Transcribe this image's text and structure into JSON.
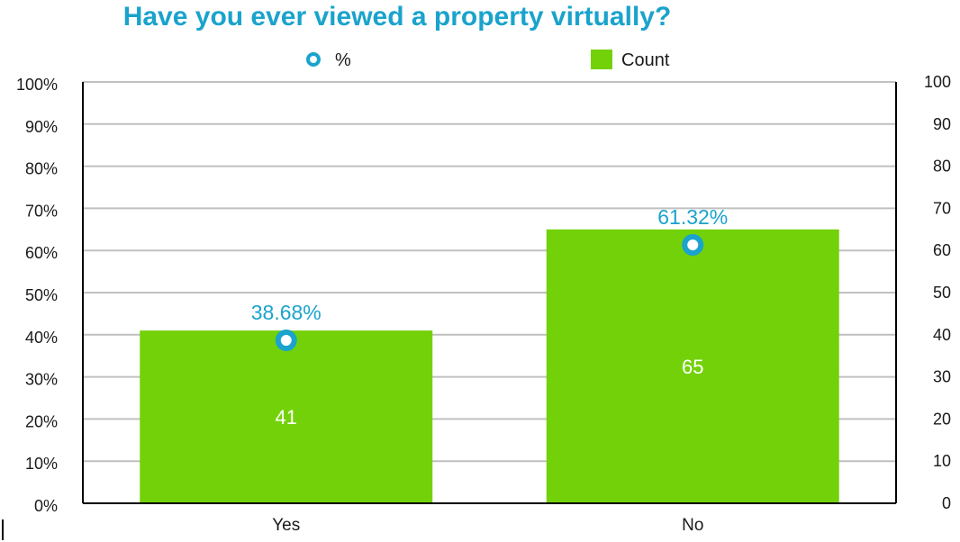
{
  "chart_data": {
    "type": "bar",
    "title": "Have you ever viewed a property virtually?",
    "categories": [
      "Yes",
      "No"
    ],
    "series": [
      {
        "name": "Count",
        "type": "bar",
        "axis": "right",
        "values": [
          41,
          65
        ],
        "labels": [
          "41",
          "65"
        ]
      },
      {
        "name": "%",
        "type": "scatter",
        "axis": "left",
        "values": [
          38.68,
          61.32
        ],
        "labels": [
          "38.68%",
          "61.32%"
        ]
      }
    ],
    "left_axis": {
      "ylim": [
        0,
        100
      ],
      "ticks": [
        "0%",
        "10%",
        "20%",
        "30%",
        "40%",
        "50%",
        "60%",
        "70%",
        "80%",
        "90%",
        "100%"
      ]
    },
    "right_axis": {
      "ylim": [
        0,
        100
      ],
      "ticks": [
        "0",
        "10",
        "20",
        "30",
        "40",
        "50",
        "60",
        "70",
        "80",
        "90",
        "100"
      ]
    },
    "grid": true,
    "legend": {
      "placement": "top-center",
      "entries": [
        "%",
        "Count"
      ]
    }
  },
  "colors": {
    "title": "#1aa3cc",
    "bar": "#73d10a",
    "marker": "#1aa3cc",
    "pct_label": "#1aa3cc",
    "count_label": "#ffffff",
    "grid": "#c0c0c0",
    "axis": "#000000"
  }
}
